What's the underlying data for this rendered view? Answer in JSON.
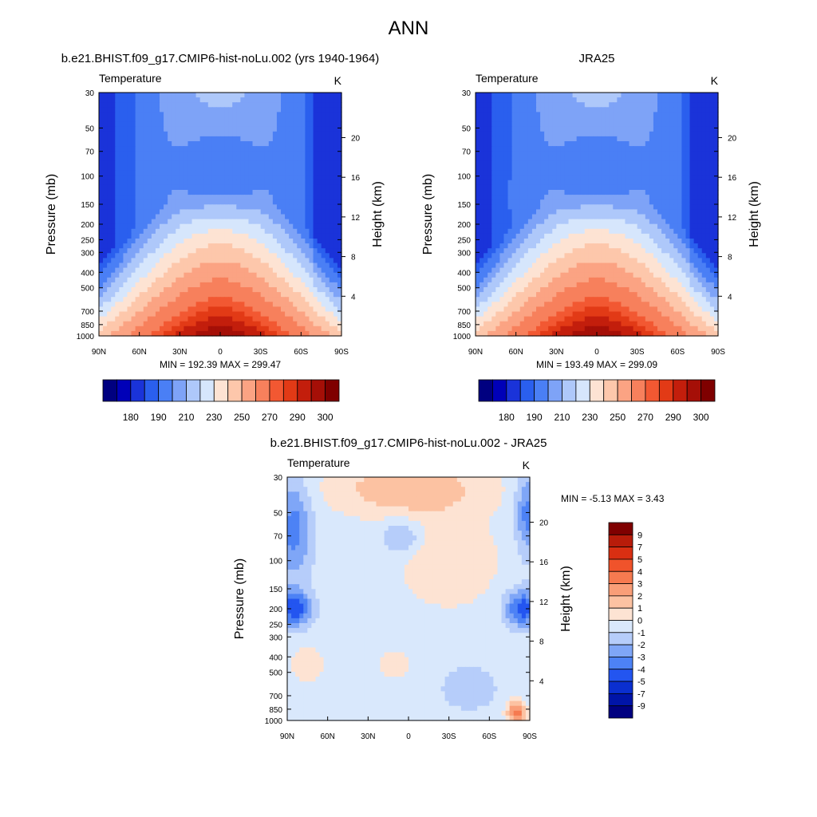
{
  "figure": {
    "title": "ANN"
  },
  "colors": {
    "abs_levels": [
      "#000080",
      "#0000b8",
      "#1a33d9",
      "#2a5fee",
      "#4a7ff5",
      "#7ea3f7",
      "#aec8fa",
      "#d6e6fc",
      "#fde3d3",
      "#fdc7ab",
      "#fba383",
      "#f7805c",
      "#f25832",
      "#e23a16",
      "#c31e0c",
      "#a50f07",
      "#7f0000"
    ],
    "diff_levels": [
      "#000080",
      "#0014a8",
      "#0a2fd0",
      "#2355f0",
      "#4d82f5",
      "#7fa6f7",
      "#b6cdfa",
      "#d9e8fc",
      "#fde3d3",
      "#fcc2a2",
      "#f99e78",
      "#f67a50",
      "#f0532b",
      "#d92f12",
      "#b81c0a",
      "#7f0000"
    ]
  },
  "panels": [
    {
      "title": "b.e21.BHIST.f09_g17.CMIP6-hist-noLu.002 (yrs 1940-1964)",
      "left_label": "Temperature",
      "right_label": "K",
      "ylabel": "Pressure (mb)",
      "y2label": "Height (km)",
      "stats": "MIN = 192.39  MAX = 299.47"
    },
    {
      "title": "JRA25",
      "left_label": "Temperature",
      "right_label": "K",
      "ylabel": "Pressure (mb)",
      "y2label": "Height (km)",
      "stats": "MIN = 193.49  MAX = 299.09"
    },
    {
      "title": "b.e21.BHIST.f09_g17.CMIP6-hist-noLu.002 - JRA25",
      "left_label": "Temperature",
      "right_label": "K",
      "ylabel": "Pressure (mb)",
      "y2label": "Height (km)",
      "stats": "MIN =  -5.13  MAX =   3.43"
    }
  ],
  "chart_data": [
    {
      "type": "heatmap",
      "title": "b.e21.BHIST.f09_g17.CMIP6-hist-noLu.002 (yrs 1940-1964)",
      "variable": "Temperature",
      "units": "K",
      "xlabel": "",
      "ylabel": "Pressure (mb)",
      "y2label": "Height (km)",
      "x_ticks": [
        "90N",
        "60N",
        "30N",
        "0",
        "30S",
        "60S",
        "90S"
      ],
      "y_ticks": [
        30,
        50,
        70,
        100,
        150,
        200,
        250,
        300,
        400,
        500,
        700,
        850,
        1000
      ],
      "y2_ticks": [
        4,
        8,
        12,
        16,
        20
      ],
      "levels": [
        180,
        185,
        190,
        200,
        210,
        220,
        230,
        240,
        250,
        260,
        270,
        280,
        285,
        290,
        295,
        300
      ],
      "colorbar_labels": [
        "180",
        "190",
        "210",
        "230",
        "250",
        "270",
        "290",
        "300"
      ],
      "min": 192.39,
      "max": 299.47,
      "colorbar_orientation": "horizontal"
    },
    {
      "type": "heatmap",
      "title": "JRA25",
      "variable": "Temperature",
      "units": "K",
      "xlabel": "",
      "ylabel": "Pressure (mb)",
      "y2label": "Height (km)",
      "x_ticks": [
        "90N",
        "60N",
        "30N",
        "0",
        "30S",
        "60S",
        "90S"
      ],
      "y_ticks": [
        30,
        50,
        70,
        100,
        150,
        200,
        250,
        300,
        400,
        500,
        700,
        850,
        1000
      ],
      "y2_ticks": [
        4,
        8,
        12,
        16,
        20
      ],
      "levels": [
        180,
        185,
        190,
        200,
        210,
        220,
        230,
        240,
        250,
        260,
        270,
        280,
        285,
        290,
        295,
        300
      ],
      "colorbar_labels": [
        "180",
        "190",
        "210",
        "230",
        "250",
        "270",
        "290",
        "300"
      ],
      "min": 193.49,
      "max": 299.09,
      "colorbar_orientation": "horizontal"
    },
    {
      "type": "heatmap",
      "title": "b.e21.BHIST.f09_g17.CMIP6-hist-noLu.002 - JRA25",
      "variable": "Temperature",
      "units": "K",
      "xlabel": "",
      "ylabel": "Pressure (mb)",
      "y2label": "Height (km)",
      "x_ticks": [
        "90N",
        "60N",
        "30N",
        "0",
        "30S",
        "60S",
        "90S"
      ],
      "y_ticks": [
        30,
        50,
        70,
        100,
        150,
        200,
        250,
        300,
        400,
        500,
        700,
        850,
        1000
      ],
      "y2_ticks": [
        4,
        8,
        12,
        16,
        20
      ],
      "levels": [
        -9,
        -7,
        -5,
        -4,
        -3,
        -2,
        -1,
        0,
        1,
        2,
        3,
        4,
        5,
        7,
        9
      ],
      "colorbar_labels": [
        "9",
        "7",
        "5",
        "4",
        "3",
        "2",
        "1",
        "0",
        "-1",
        "-2",
        "-3",
        "-4",
        "-5",
        "-7",
        "-9"
      ],
      "min": -5.13,
      "max": 3.43,
      "colorbar_orientation": "vertical"
    }
  ]
}
